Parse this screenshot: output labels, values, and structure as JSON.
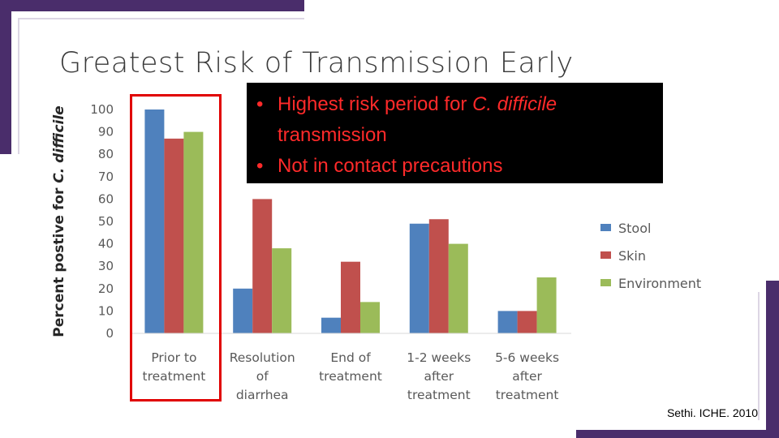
{
  "slide": {
    "title": "Greatest Risk of Transmission Early",
    "citation": "Sethi. ICHE. 2010"
  },
  "callout": {
    "bullets": [
      {
        "text": "Highest risk period for ",
        "italic": "C. difficile",
        "rest": " transmission"
      },
      {
        "text": "Not in contact precautions",
        "italic": "",
        "rest": ""
      }
    ]
  },
  "colors": {
    "stool": "#4f81bd",
    "skin": "#c0504d",
    "environment": "#9bbb59",
    "highlight": "#e00000",
    "callout_text": "#ff2a2a",
    "accent": "#4a2d6b"
  },
  "chart_data": {
    "type": "bar",
    "ylabel": "Percent postive for ",
    "ylabel_italic": "C. difficile",
    "ylim": [
      0,
      100
    ],
    "yticks": [
      0,
      10,
      20,
      30,
      40,
      50,
      60,
      70,
      80,
      90,
      100
    ],
    "grid": false,
    "legend_position": "right",
    "categories": [
      [
        "Prior to",
        "treatment"
      ],
      [
        "Resolution",
        "of",
        "diarrhea"
      ],
      [
        "End of",
        "treatment"
      ],
      [
        "1-2 weeks",
        "after",
        "treatment"
      ],
      [
        "5-6 weeks",
        "after",
        "treatment"
      ]
    ],
    "series": [
      {
        "name": "Stool",
        "values": [
          100,
          20,
          7,
          49,
          10
        ]
      },
      {
        "name": "Skin",
        "values": [
          87,
          60,
          32,
          51,
          10
        ]
      },
      {
        "name": "Environment",
        "values": [
          90,
          38,
          14,
          40,
          25
        ]
      }
    ]
  }
}
